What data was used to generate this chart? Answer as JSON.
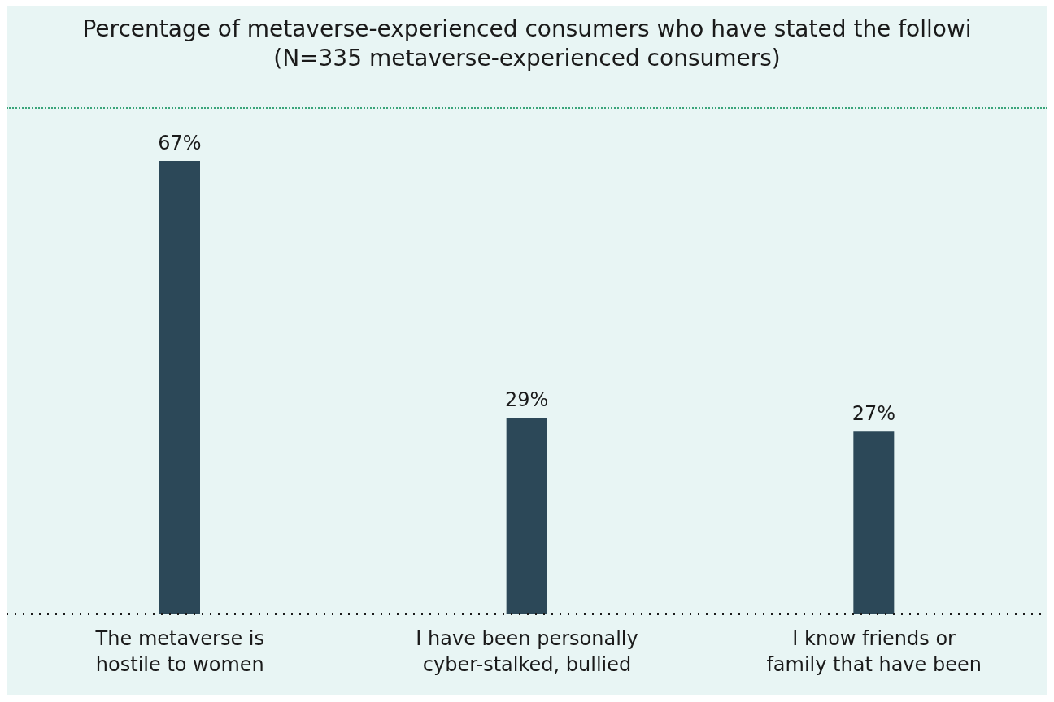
{
  "chart_data": {
    "type": "bar",
    "title": "Percentage of metaverse-experienced consumers who have stated the followi",
    "subtitle": "(N=335 metaverse-experienced consumers)",
    "categories": [
      "The metaverse is hostile to women",
      "I have been personally cyber-stalked, bullied",
      "I know friends or family that have been"
    ],
    "values": [
      67,
      29,
      27
    ],
    "value_labels": [
      "67%",
      "29%",
      "27%"
    ],
    "color": "#2c4858"
  }
}
